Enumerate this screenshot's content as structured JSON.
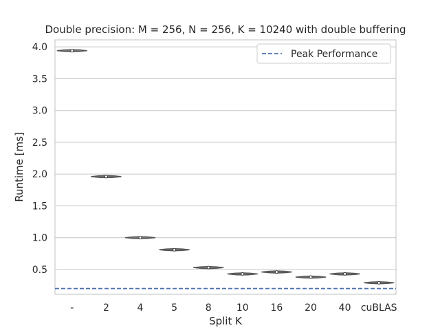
{
  "chart_data": {
    "type": "violin",
    "title": "Double precision: M = 256, N = 256, K = 10240 with double buffering",
    "xlabel": "Split K",
    "ylabel": "Runtime [ms]",
    "categories": [
      "-",
      "2",
      "4",
      "5",
      "8",
      "10",
      "16",
      "20",
      "40",
      "cuBLAS"
    ],
    "series": [
      {
        "values": [
          3.94,
          1.96,
          1.0,
          0.81,
          0.53,
          0.43,
          0.46,
          0.38,
          0.43,
          0.29
        ],
        "ranges": [
          [
            3.93,
            3.95
          ],
          [
            1.955,
            1.965
          ],
          [
            0.998,
            1.002
          ],
          [
            0.805,
            0.815
          ],
          [
            0.525,
            0.535
          ],
          [
            0.425,
            0.435
          ],
          [
            0.445,
            0.475
          ],
          [
            0.375,
            0.385
          ],
          [
            0.42,
            0.445
          ],
          [
            0.285,
            0.295
          ]
        ]
      }
    ],
    "reference_lines": [
      {
        "name": "Peak Performance",
        "y": 0.2,
        "style": "dashed",
        "color": "#4c72b0"
      }
    ],
    "ylim": [
      0.11,
      4.11
    ],
    "yticks": [
      0.5,
      1.0,
      1.5,
      2.0,
      2.5,
      3.0,
      3.5,
      4.0
    ],
    "ytick_labels": [
      "0.5",
      "1.0",
      "1.5",
      "2.0",
      "2.5",
      "3.0",
      "3.5",
      "4.0"
    ],
    "grid": true,
    "legend_position": "top-right",
    "colors": {
      "violin": "#555555",
      "grid": "#cccccc",
      "peak": "#4c72b0",
      "text": "#262626"
    }
  }
}
